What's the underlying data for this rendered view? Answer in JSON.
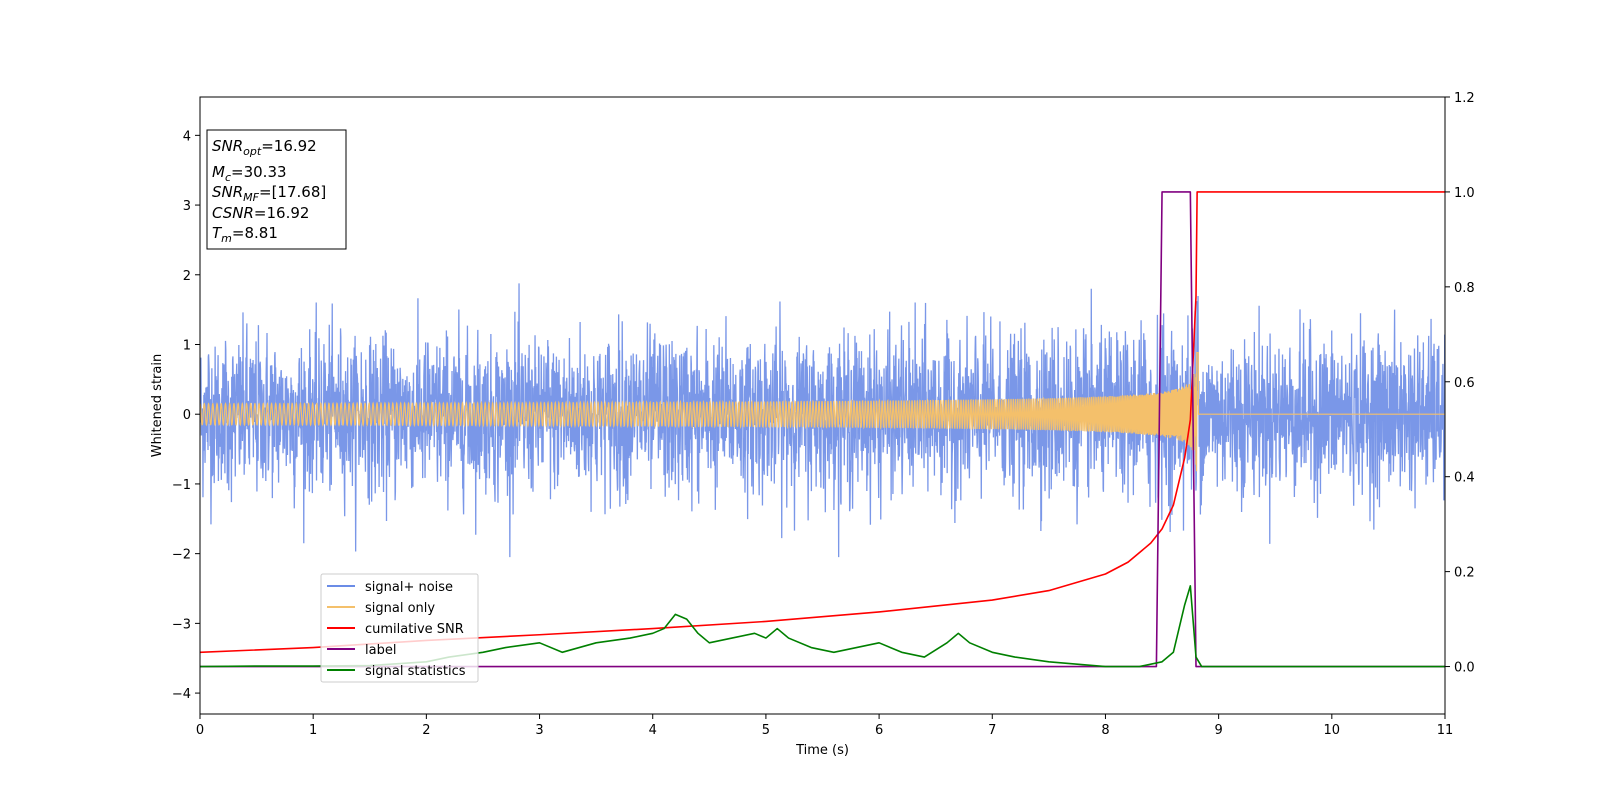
{
  "chart_data": {
    "type": "line",
    "title": "",
    "xlabel": "Time (s)",
    "ylabel": "Whitened strain",
    "xlim": [
      0,
      11
    ],
    "ylim": [
      -4.3,
      4.55
    ],
    "y2lim": [
      -0.1,
      1.2
    ],
    "x_ticks": [
      "0",
      "1",
      "2",
      "3",
      "4",
      "5",
      "6",
      "7",
      "8",
      "9",
      "10",
      "11"
    ],
    "y_ticks": [
      "−4",
      "−3",
      "−2",
      "−1",
      "0",
      "1",
      "2",
      "3",
      "4"
    ],
    "y2_ticks": [
      "0.0",
      "0.2",
      "0.4",
      "0.6",
      "0.8",
      "1.0",
      "1.2"
    ],
    "grid": false,
    "legend_position": "lower-left",
    "info_box": {
      "snr_opt": {
        "base": "SNR",
        "sub": "opt",
        "value": "=16.92"
      },
      "mc": {
        "base": "M",
        "sub": "c",
        "value": "=30.33"
      },
      "snr_mf": {
        "base": "SNR",
        "sub": "MF",
        "value": "=[17.68]"
      },
      "csnr": {
        "base": "CSNR",
        "value": "=16.92"
      },
      "tm": {
        "base": "T",
        "sub": "m",
        "value": "=8.81"
      }
    },
    "series": [
      {
        "name": "signal+ noise",
        "axis": "left",
        "color": "#6b8ce6",
        "description_values": {
          "x_range": [
            0,
            11
          ],
          "typical_amplitude": 1.0,
          "peak_max": 2.1,
          "peak_min": -2.0
        }
      },
      {
        "name": "signal only",
        "axis": "left",
        "color": "#f4c06b",
        "chirp": {
          "merger_time": 8.81,
          "peak_amplitude": 1.2,
          "start_amplitude": 0.02
        }
      },
      {
        "name": "cumilative SNR",
        "axis": "right",
        "color": "#ff0000",
        "x": [
          0,
          1,
          2,
          3,
          4,
          5,
          6,
          7,
          7.5,
          8,
          8.2,
          8.4,
          8.5,
          8.6,
          8.7,
          8.75,
          8.8,
          8.81,
          8.82,
          9,
          10,
          11
        ],
        "y": [
          0.03,
          0.04,
          0.055,
          0.067,
          0.08,
          0.095,
          0.115,
          0.14,
          0.16,
          0.195,
          0.22,
          0.26,
          0.29,
          0.34,
          0.44,
          0.52,
          0.78,
          1.0,
          1.0,
          1.0,
          1.0,
          1.0
        ]
      },
      {
        "name": "label",
        "axis": "right",
        "color": "#800080",
        "x": [
          0,
          8.45,
          8.5,
          8.75,
          8.8,
          11
        ],
        "y": [
          0,
          0,
          1,
          1,
          0,
          0
        ]
      },
      {
        "name": "signal statistics",
        "axis": "right",
        "color": "#008000",
        "x": [
          0,
          0.5,
          1,
          1.5,
          2,
          2.2,
          2.5,
          2.7,
          3,
          3.2,
          3.5,
          3.8,
          4,
          4.1,
          4.2,
          4.3,
          4.4,
          4.5,
          4.7,
          4.9,
          5,
          5.1,
          5.2,
          5.4,
          5.6,
          5.8,
          6,
          6.2,
          6.4,
          6.6,
          6.7,
          6.8,
          7,
          7.2,
          7.5,
          8,
          8.3,
          8.5,
          8.6,
          8.65,
          8.7,
          8.75,
          8.8,
          8.85,
          9,
          10,
          11
        ],
        "y": [
          0.0,
          0.001,
          0.001,
          0.002,
          0.01,
          0.02,
          0.03,
          0.04,
          0.05,
          0.03,
          0.05,
          0.06,
          0.07,
          0.08,
          0.11,
          0.1,
          0.07,
          0.05,
          0.06,
          0.07,
          0.06,
          0.08,
          0.06,
          0.04,
          0.03,
          0.04,
          0.05,
          0.03,
          0.02,
          0.05,
          0.07,
          0.05,
          0.03,
          0.02,
          0.01,
          0.0,
          0.0,
          0.01,
          0.03,
          0.08,
          0.13,
          0.17,
          0.02,
          0.0,
          0.0,
          0.0,
          0.0
        ]
      }
    ]
  }
}
